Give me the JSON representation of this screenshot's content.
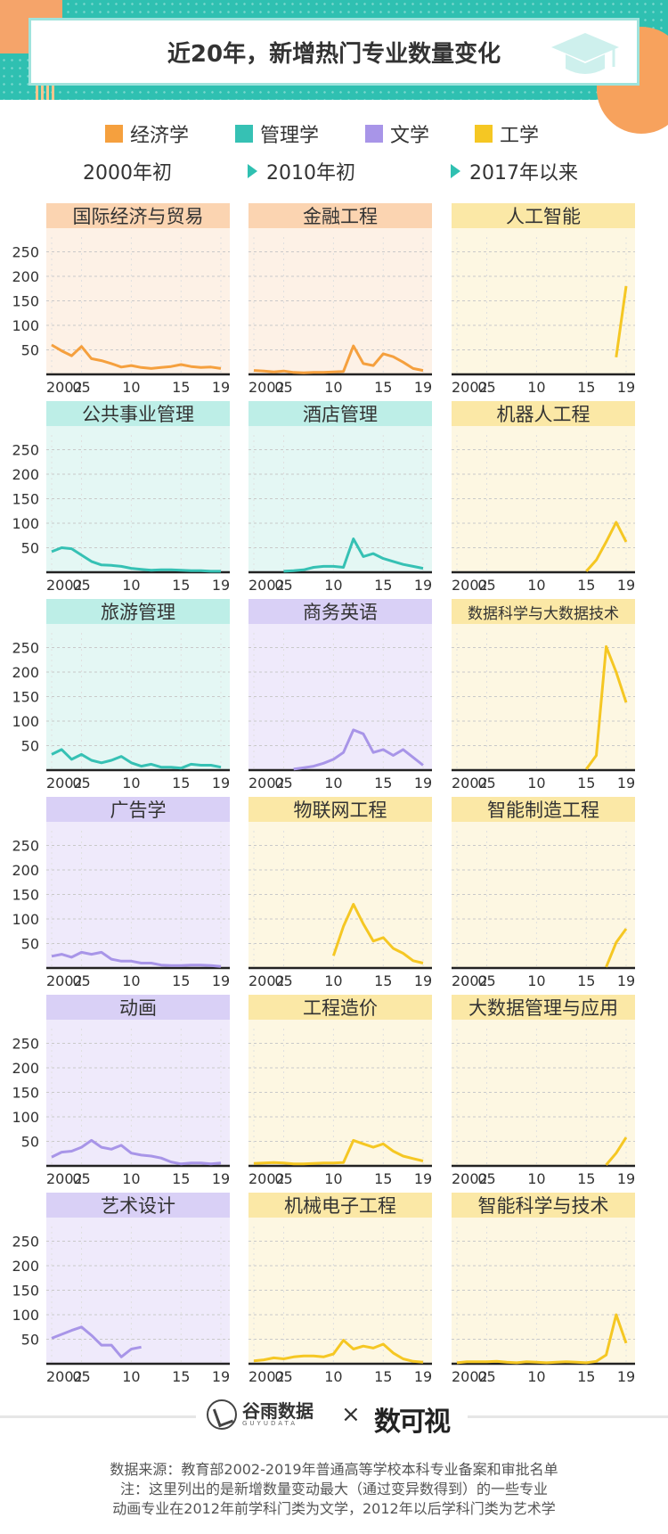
{
  "header": {
    "title": "近20年，新增热门专业数量变化"
  },
  "legend": [
    {
      "label": "经济学",
      "color": "#f5a03e"
    },
    {
      "label": "管理学",
      "color": "#36c1b4"
    },
    {
      "label": "文学",
      "color": "#a895e8"
    },
    {
      "label": "工学",
      "color": "#f5c723"
    }
  ],
  "eras": [
    "2000年初",
    "2010年初",
    "2017年以来"
  ],
  "axis": {
    "y_ticks": [
      "250",
      "200",
      "150",
      "100",
      "50"
    ],
    "x_ticks": [
      "2002",
      "05",
      "10",
      "15",
      "19"
    ]
  },
  "chart_data": [
    {
      "type": "line",
      "title": "国际经济与贸易",
      "category": "经济学",
      "x": [
        2002,
        2003,
        2004,
        2005,
        2006,
        2007,
        2008,
        2009,
        2010,
        2011,
        2012,
        2013,
        2014,
        2015,
        2016,
        2017,
        2018,
        2019
      ],
      "y": [
        60,
        48,
        38,
        57,
        32,
        28,
        22,
        15,
        18,
        14,
        12,
        14,
        16,
        20,
        16,
        14,
        15,
        12
      ],
      "ylim": [
        0,
        280
      ],
      "yticks": [
        50,
        100,
        150,
        200,
        250
      ],
      "xticks": [
        2002,
        2005,
        2010,
        2015,
        2019
      ]
    },
    {
      "type": "line",
      "title": "金融工程",
      "category": "经济学",
      "x": [
        2002,
        2003,
        2004,
        2005,
        2006,
        2007,
        2008,
        2009,
        2010,
        2011,
        2012,
        2013,
        2014,
        2015,
        2016,
        2017,
        2018,
        2019
      ],
      "y": [
        8,
        7,
        5,
        7,
        4,
        3,
        4,
        4,
        5,
        6,
        58,
        22,
        18,
        42,
        36,
        25,
        12,
        8
      ],
      "ylim": [
        0,
        280
      ],
      "yticks": [
        50,
        100,
        150,
        200,
        250
      ],
      "xticks": [
        2002,
        2005,
        2010,
        2015,
        2019
      ]
    },
    {
      "type": "line",
      "title": "人工智能",
      "category": "工学",
      "x": [
        2018,
        2019
      ],
      "y": [
        35,
        180
      ],
      "ylim": [
        0,
        280
      ],
      "yticks": [
        50,
        100,
        150,
        200,
        250
      ],
      "xticks": [
        2002,
        2005,
        2010,
        2015,
        2019
      ]
    },
    {
      "type": "line",
      "title": "公共事业管理",
      "category": "管理学",
      "x": [
        2002,
        2003,
        2004,
        2005,
        2006,
        2007,
        2008,
        2009,
        2010,
        2011,
        2012,
        2013,
        2014,
        2015,
        2016,
        2017,
        2018,
        2019
      ],
      "y": [
        42,
        50,
        48,
        35,
        22,
        15,
        14,
        12,
        8,
        6,
        4,
        5,
        5,
        4,
        3,
        3,
        2,
        2
      ],
      "ylim": [
        0,
        280
      ],
      "yticks": [
        50,
        100,
        150,
        200,
        250
      ],
      "xticks": [
        2002,
        2005,
        2010,
        2015,
        2019
      ]
    },
    {
      "type": "line",
      "title": "酒店管理",
      "category": "管理学",
      "x": [
        2005,
        2006,
        2007,
        2008,
        2009,
        2010,
        2011,
        2012,
        2013,
        2014,
        2015,
        2016,
        2017,
        2018,
        2019
      ],
      "y": [
        2,
        3,
        5,
        10,
        12,
        12,
        10,
        68,
        32,
        38,
        28,
        22,
        16,
        12,
        8
      ],
      "ylim": [
        0,
        280
      ],
      "yticks": [
        50,
        100,
        150,
        200,
        250
      ],
      "xticks": [
        2002,
        2005,
        2010,
        2015,
        2019
      ]
    },
    {
      "type": "line",
      "title": "机器人工程",
      "category": "工学",
      "x": [
        2015,
        2016,
        2017,
        2018,
        2019
      ],
      "y": [
        2,
        25,
        62,
        102,
        62
      ],
      "ylim": [
        0,
        280
      ],
      "yticks": [
        50,
        100,
        150,
        200,
        250
      ],
      "xticks": [
        2002,
        2005,
        2010,
        2015,
        2019
      ]
    },
    {
      "type": "line",
      "title": "旅游管理",
      "category": "管理学",
      "x": [
        2002,
        2003,
        2004,
        2005,
        2006,
        2007,
        2008,
        2009,
        2010,
        2011,
        2012,
        2013,
        2014,
        2015,
        2016,
        2017,
        2018,
        2019
      ],
      "y": [
        32,
        42,
        22,
        32,
        20,
        15,
        20,
        28,
        15,
        8,
        12,
        6,
        6,
        4,
        12,
        10,
        10,
        6
      ],
      "ylim": [
        0,
        280
      ],
      "yticks": [
        50,
        100,
        150,
        200,
        250
      ],
      "xticks": [
        2002,
        2005,
        2010,
        2015,
        2019
      ]
    },
    {
      "type": "line",
      "title": "商务英语",
      "category": "文学",
      "x": [
        2006,
        2007,
        2008,
        2009,
        2010,
        2011,
        2012,
        2013,
        2014,
        2015,
        2016,
        2017,
        2018,
        2019
      ],
      "y": [
        2,
        5,
        8,
        14,
        22,
        36,
        82,
        74,
        36,
        42,
        30,
        42,
        26,
        10
      ],
      "ylim": [
        0,
        280
      ],
      "yticks": [
        50,
        100,
        150,
        200,
        250
      ],
      "xticks": [
        2002,
        2005,
        2010,
        2015,
        2019
      ]
    },
    {
      "type": "line",
      "title": "数据科学与大数据技术",
      "category": "工学",
      "x": [
        2015,
        2016,
        2017,
        2018,
        2019
      ],
      "y": [
        2,
        30,
        252,
        200,
        138
      ],
      "ylim": [
        0,
        280
      ],
      "yticks": [
        50,
        100,
        150,
        200,
        250
      ],
      "xticks": [
        2002,
        2005,
        2010,
        2015,
        2019
      ]
    },
    {
      "type": "line",
      "title": "广告学",
      "category": "文学",
      "x": [
        2002,
        2003,
        2004,
        2005,
        2006,
        2007,
        2008,
        2009,
        2010,
        2011,
        2012,
        2013,
        2014,
        2015,
        2016,
        2017,
        2018,
        2019
      ],
      "y": [
        24,
        28,
        22,
        32,
        28,
        32,
        18,
        14,
        14,
        10,
        10,
        6,
        5,
        5,
        6,
        6,
        5,
        3
      ],
      "ylim": [
        0,
        280
      ],
      "yticks": [
        50,
        100,
        150,
        200,
        250
      ],
      "xticks": [
        2002,
        2005,
        2010,
        2015,
        2019
      ]
    },
    {
      "type": "line",
      "title": "物联网工程",
      "category": "工学",
      "x": [
        2010,
        2011,
        2012,
        2013,
        2014,
        2015,
        2016,
        2017,
        2018,
        2019
      ],
      "y": [
        25,
        85,
        130,
        90,
        55,
        62,
        40,
        30,
        15,
        10
      ],
      "ylim": [
        0,
        280
      ],
      "yticks": [
        50,
        100,
        150,
        200,
        250
      ],
      "xticks": [
        2002,
        2005,
        2010,
        2015,
        2019
      ]
    },
    {
      "type": "line",
      "title": "智能制造工程",
      "category": "工学",
      "x": [
        2017,
        2018,
        2019
      ],
      "y": [
        2,
        52,
        80
      ],
      "ylim": [
        0,
        280
      ],
      "yticks": [
        50,
        100,
        150,
        200,
        250
      ],
      "xticks": [
        2002,
        2005,
        2010,
        2015,
        2019
      ]
    },
    {
      "type": "line",
      "title": "动画",
      "category": "文学",
      "x": [
        2002,
        2003,
        2004,
        2005,
        2006,
        2007,
        2008,
        2009,
        2010,
        2011,
        2012,
        2013,
        2014,
        2015,
        2016,
        2017,
        2018,
        2019
      ],
      "y": [
        18,
        28,
        30,
        38,
        52,
        38,
        34,
        42,
        26,
        22,
        20,
        16,
        8,
        4,
        6,
        6,
        4,
        6
      ],
      "ylim": [
        0,
        280
      ],
      "yticks": [
        50,
        100,
        150,
        200,
        250
      ],
      "xticks": [
        2002,
        2005,
        2010,
        2015,
        2019
      ]
    },
    {
      "type": "line",
      "title": "工程造价",
      "category": "工学",
      "x": [
        2002,
        2003,
        2004,
        2005,
        2006,
        2007,
        2008,
        2009,
        2010,
        2011,
        2012,
        2013,
        2014,
        2015,
        2016,
        2017,
        2018,
        2019
      ],
      "y": [
        5,
        6,
        7,
        6,
        4,
        4,
        5,
        6,
        6,
        7,
        52,
        45,
        38,
        45,
        30,
        20,
        15,
        10
      ],
      "ylim": [
        0,
        280
      ],
      "yticks": [
        50,
        100,
        150,
        200,
        250
      ],
      "xticks": [
        2002,
        2005,
        2010,
        2015,
        2019
      ]
    },
    {
      "type": "line",
      "title": "大数据管理与应用",
      "category": "工学",
      "x": [
        2017,
        2018,
        2019
      ],
      "y": [
        2,
        26,
        58
      ],
      "ylim": [
        0,
        280
      ],
      "yticks": [
        50,
        100,
        150,
        200,
        250
      ],
      "xticks": [
        2002,
        2005,
        2010,
        2015,
        2019
      ]
    },
    {
      "type": "line",
      "title": "艺术设计",
      "category": "文学",
      "x": [
        2002,
        2003,
        2004,
        2005,
        2006,
        2007,
        2008,
        2009,
        2010,
        2011
      ],
      "y": [
        52,
        60,
        68,
        75,
        58,
        38,
        38,
        14,
        30,
        34
      ],
      "ylim": [
        0,
        280
      ],
      "yticks": [
        50,
        100,
        150,
        200,
        250
      ],
      "xticks": [
        2002,
        2005,
        2010,
        2015,
        2019
      ]
    },
    {
      "type": "line",
      "title": "机械电子工程",
      "category": "工学",
      "x": [
        2002,
        2003,
        2004,
        2005,
        2006,
        2007,
        2008,
        2009,
        2010,
        2011,
        2012,
        2013,
        2014,
        2015,
        2016,
        2017,
        2018,
        2019
      ],
      "y": [
        6,
        8,
        12,
        10,
        14,
        16,
        16,
        14,
        20,
        48,
        30,
        36,
        32,
        40,
        22,
        10,
        5,
        3
      ],
      "ylim": [
        0,
        280
      ],
      "yticks": [
        50,
        100,
        150,
        200,
        250
      ],
      "xticks": [
        2002,
        2005,
        2010,
        2015,
        2019
      ]
    },
    {
      "type": "line",
      "title": "智能科学与技术",
      "category": "工学",
      "x": [
        2002,
        2003,
        2004,
        2005,
        2006,
        2007,
        2008,
        2009,
        2010,
        2011,
        2012,
        2013,
        2014,
        2015,
        2016,
        2017,
        2018,
        2019
      ],
      "y": [
        2,
        4,
        4,
        4,
        5,
        3,
        2,
        4,
        3,
        2,
        3,
        4,
        3,
        2,
        5,
        18,
        100,
        42
      ],
      "ylim": [
        0,
        280
      ],
      "yticks": [
        50,
        100,
        150,
        200,
        250
      ],
      "xticks": [
        2002,
        2005,
        2010,
        2015,
        2019
      ]
    }
  ],
  "logos": {
    "guyu_name": "谷雨数据",
    "guyu_sub": "GUYUDATA",
    "separator": "×",
    "partner": "数可视"
  },
  "footer": {
    "source": "数据来源：教育部2002-2019年普通高等学校本科专业备案和审批名单",
    "note1": "注：这里列出的是新增数量变动最大（通过变异数得到）的一些专业",
    "note2": "动画专业在2012年前学科门类为文学，2012年以后学科门类为艺术学"
  }
}
